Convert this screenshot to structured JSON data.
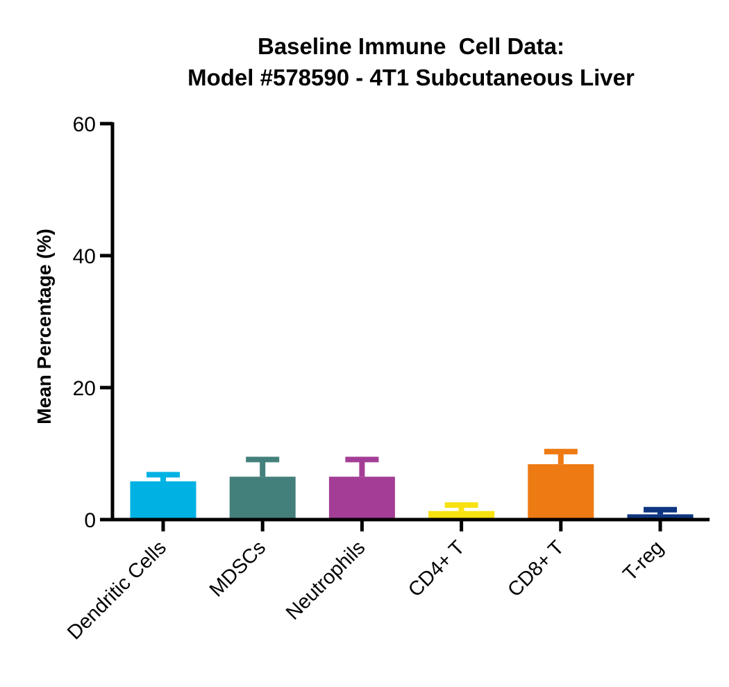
{
  "chart_data": {
    "type": "bar",
    "title": "Baseline Immune  Cell Data:",
    "subtitle": "Model #578590 - 4T1 Subcutaneous Liver",
    "xlabel": "",
    "ylabel": "Mean Percentage (%)",
    "ylim": [
      0,
      60
    ],
    "yticks": [
      0,
      20,
      40,
      60
    ],
    "ytick_labels": [
      "0",
      "20",
      "40",
      "60"
    ],
    "grid": false,
    "legend": "none",
    "categories": [
      "Dendritic Cells",
      "MDSCs",
      "Neutrophils",
      "CD4+ T",
      "CD8+ T",
      "T-reg"
    ],
    "values": [
      5.8,
      6.5,
      6.5,
      1.3,
      8.4,
      0.8
    ],
    "error": [
      1.0,
      2.6,
      2.6,
      0.9,
      1.9,
      0.7
    ],
    "colors": [
      "#00B2E3",
      "#44807B",
      "#A43D96",
      "#F8E111",
      "#EE7A13",
      "#0E3580"
    ]
  }
}
